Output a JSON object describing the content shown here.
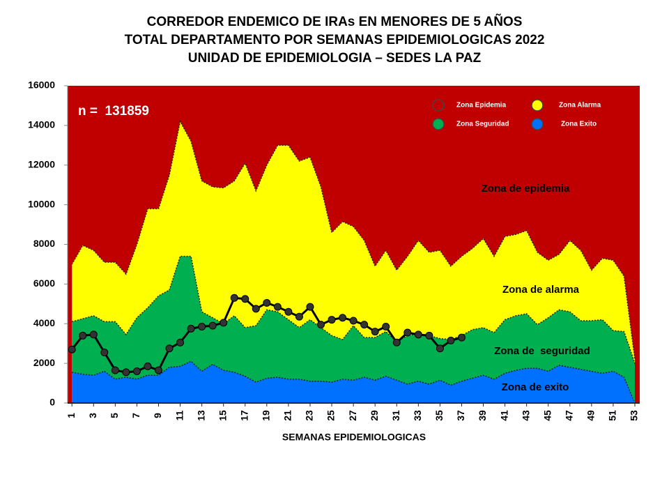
{
  "chart_data": {
    "type": "corridor",
    "title": [
      "CORREDOR ENDEMICO DE IRAs EN MENORES DE 5 AÑOS",
      "TOTAL DEPARTAMENTO POR SEMANAS EPIDEMIOLOGICAS 2022",
      "UNIDAD DE EPIDEMIOLOGIA – SEDES LA PAZ"
    ],
    "x_label": "SEMANAS EPIDEMIOLOGICAS",
    "annotation": "n =  131859",
    "zone_labels": [
      "Zona de epidemia",
      "Zona de alarma",
      "Zona de  seguridad",
      "Zona de exito"
    ],
    "x": [
      1,
      2,
      3,
      4,
      5,
      6,
      7,
      8,
      9,
      10,
      11,
      12,
      13,
      14,
      15,
      16,
      17,
      18,
      19,
      20,
      21,
      22,
      23,
      24,
      25,
      26,
      27,
      28,
      29,
      30,
      31,
      32,
      33,
      34,
      35,
      36,
      37,
      38,
      39,
      40,
      41,
      42,
      43,
      44,
      45,
      46,
      47,
      48,
      49,
      50,
      51,
      52,
      53
    ],
    "xlim": [
      0.6,
      53.45
    ],
    "xticks": [
      1,
      3,
      5,
      7,
      9,
      11,
      13,
      15,
      17,
      19,
      21,
      23,
      25,
      27,
      29,
      31,
      33,
      35,
      37,
      39,
      41,
      43,
      45,
      47,
      49,
      51,
      53
    ],
    "ylim": [
      0,
      16000
    ],
    "yticks": [
      0,
      2000,
      4000,
      6000,
      8000,
      10000,
      12000,
      14000,
      16000
    ],
    "epidemia": {
      "name": "Zona Epidemia",
      "color": "#c00000"
    },
    "series": [
      {
        "name": "Zona Alarma",
        "color": "#ffff00",
        "values": [
          7000,
          7950,
          7700,
          7100,
          7100,
          6500,
          8000,
          9800,
          9800,
          11500,
          14200,
          13200,
          11200,
          10900,
          10850,
          11200,
          12100,
          10700,
          12000,
          13000,
          13000,
          12200,
          12400,
          10900,
          8600,
          9150,
          8900,
          8200,
          6900,
          7700,
          6700,
          7400,
          8200,
          7600,
          7700,
          6900,
          7400,
          7800,
          8300,
          7400,
          8400,
          8500,
          8700,
          7600,
          7200,
          7500,
          8200,
          7700,
          6700,
          7300,
          7200,
          6400,
          2200
        ]
      },
      {
        "name": "Zona Seguridad",
        "color": "#00b050",
        "values": [
          4100,
          4250,
          4400,
          4100,
          4100,
          3450,
          4300,
          4800,
          5400,
          5700,
          7400,
          7400,
          4600,
          4300,
          4000,
          4400,
          3800,
          3900,
          4700,
          4600,
          4200,
          3800,
          4200,
          3800,
          3400,
          3200,
          3900,
          3300,
          3300,
          3600,
          3100,
          3400,
          3500,
          3400,
          3250,
          3200,
          3400,
          3700,
          3800,
          3550,
          4200,
          4400,
          4500,
          3950,
          4300,
          4700,
          4600,
          4150,
          4150,
          4200,
          3650,
          3600,
          2000
        ]
      },
      {
        "name": "Zona Exito",
        "color": "#0070ff",
        "values": [
          1550,
          1450,
          1400,
          1600,
          1200,
          1300,
          1200,
          1400,
          1400,
          1800,
          1850,
          2100,
          1600,
          1950,
          1650,
          1550,
          1350,
          1050,
          1250,
          1300,
          1200,
          1200,
          1100,
          1100,
          1050,
          1200,
          1150,
          1300,
          1150,
          1350,
          1150,
          950,
          1100,
          950,
          1150,
          900,
          1100,
          1250,
          1400,
          1200,
          1500,
          1650,
          1750,
          1750,
          1600,
          1900,
          1800,
          1700,
          1600,
          1500,
          1600,
          1300,
          0
        ]
      }
    ],
    "line": {
      "color": "#000000",
      "values": [
        2700,
        3400,
        3450,
        2550,
        1650,
        1550,
        1600,
        1850,
        1650,
        2750,
        3050,
        3750,
        3850,
        3900,
        4050,
        5300,
        5250,
        4750,
        5050,
        4850,
        4600,
        4350,
        4850,
        3950,
        4200,
        4300,
        4150,
        3950,
        3600,
        3850,
        3050,
        3550,
        3450,
        3400,
        2750,
        3150,
        3300,
        null,
        null,
        null,
        null,
        null,
        null,
        null,
        null,
        null,
        null,
        null,
        null,
        null,
        null,
        null,
        null
      ]
    }
  }
}
